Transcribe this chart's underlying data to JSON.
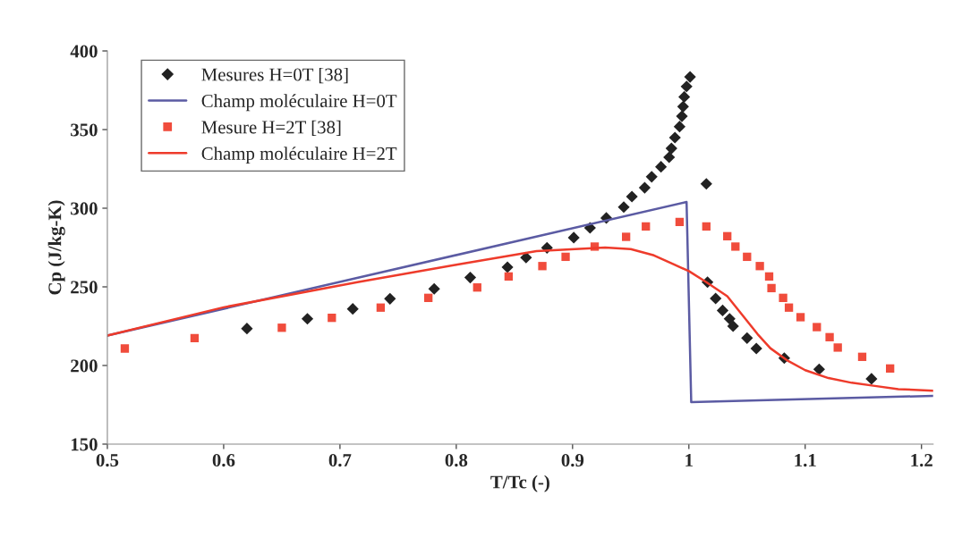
{
  "chart_data": {
    "type": "scatter",
    "xlabel": "T/Tc (-)",
    "ylabel": "Cp (J/kg-K)",
    "xlim": [
      0.5,
      1.21
    ],
    "xticks": [
      0.5,
      0.6,
      0.7,
      0.8,
      0.9,
      1,
      1.1,
      1.2
    ],
    "ylim": [
      150,
      400
    ],
    "yticks": [
      150,
      200,
      250,
      300,
      350,
      400
    ],
    "grid": false,
    "legend": "top left",
    "series": [
      {
        "name": "Mesures H=0T [38]",
        "marker": "diamond",
        "color": "#222222",
        "x": [
          0.62,
          0.672,
          0.711,
          0.743,
          0.781,
          0.812,
          0.844,
          0.86,
          0.878,
          0.901,
          0.915,
          0.929,
          0.944,
          0.951,
          0.962,
          0.968,
          0.976,
          0.983,
          0.985,
          0.988,
          0.992,
          0.994,
          0.995,
          0.996,
          0.998,
          1.001,
          1.015,
          1.016,
          1.023,
          1.029,
          1.035,
          1.038,
          1.05,
          1.058,
          1.082,
          1.112,
          1.157
        ],
        "values": [
          223.5,
          229.7,
          236,
          242.4,
          248.7,
          255.9,
          262.5,
          268.6,
          274.8,
          281.3,
          287.5,
          293.8,
          300.7,
          307.4,
          313,
          320,
          326.3,
          332.4,
          338,
          344.9,
          351.9,
          358.5,
          364.6,
          370.8,
          377.4,
          383.5,
          315.5,
          253,
          242.6,
          235,
          229.7,
          225,
          217.4,
          210.8,
          204.7,
          197.6,
          191.5
        ]
      },
      {
        "name": "Champ moléculaire H=0T",
        "type": "line",
        "marker": "none",
        "line_style": "solid",
        "color": "#5b5ba3",
        "x": [
          0.5,
          0.998,
          1.002,
          1.21
        ],
        "values": [
          219,
          304,
          176.7,
          180.7
        ]
      },
      {
        "name": "Mesure H=2T [38]",
        "marker": "square",
        "color": "#f04c3c",
        "x": [
          0.515,
          0.575,
          0.65,
          0.693,
          0.735,
          0.776,
          0.818,
          0.845,
          0.874,
          0.894,
          0.919,
          0.946,
          0.963,
          0.992,
          1.015,
          1.033,
          1.04,
          1.05,
          1.061,
          1.069,
          1.071,
          1.081,
          1.086,
          1.096,
          1.11,
          1.121,
          1.128,
          1.149,
          1.173
        ],
        "values": [
          210.8,
          217.4,
          224,
          230.3,
          236.8,
          243,
          249.6,
          256.6,
          263.2,
          269.1,
          275.6,
          281.8,
          288.4,
          291.3,
          288.4,
          282.2,
          275.6,
          269.1,
          263.2,
          256.6,
          249.2,
          243,
          236.8,
          230.7,
          224.4,
          218,
          211.4,
          205.5,
          198.1
        ]
      },
      {
        "name": "Champ moléculaire H=2T",
        "type": "line",
        "marker": "none",
        "line_style": "solid",
        "color": "#ee3b2b",
        "x": [
          0.5,
          0.6,
          0.715,
          0.8,
          0.869,
          0.928,
          0.95,
          0.97,
          0.985,
          1.0,
          1.015,
          1.033,
          1.045,
          1.059,
          1.07,
          1.085,
          1.1,
          1.12,
          1.14,
          1.16,
          1.18,
          1.21
        ],
        "values": [
          219,
          237,
          253,
          264,
          272.7,
          275,
          274,
          270,
          265,
          260,
          253,
          244,
          233,
          220,
          211,
          203,
          197,
          192,
          189,
          187,
          185,
          184
        ]
      }
    ]
  }
}
